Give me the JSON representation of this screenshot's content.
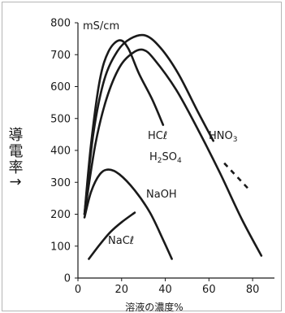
{
  "chart_data": {
    "type": "line",
    "ylabel": "導電率↑",
    "xlabel": "溶液の濃度%",
    "y_unit": "mS/cm",
    "xlim": [
      0,
      90
    ],
    "ylim": [
      0,
      800
    ],
    "x_ticks": [
      0,
      20,
      40,
      60,
      80
    ],
    "y_ticks": [
      0,
      100,
      200,
      300,
      400,
      500,
      600,
      700,
      800
    ],
    "grid": false,
    "legend": "none",
    "series": [
      {
        "name": "HCℓ",
        "label": "HCℓ",
        "color": "#1a1a1a",
        "points": [
          [
            3,
            200
          ],
          [
            6,
            420
          ],
          [
            10,
            620
          ],
          [
            14,
            710
          ],
          [
            19,
            745
          ],
          [
            23,
            720
          ],
          [
            28,
            640
          ],
          [
            34,
            560
          ],
          [
            39,
            480
          ]
        ]
      },
      {
        "name": "H₂SO₄",
        "label_main": "H",
        "label_sub": "2",
        "label_main2": "SO",
        "label_sub2": "4",
        "color": "#1a1a1a",
        "points": [
          [
            3,
            200
          ],
          [
            8,
            420
          ],
          [
            13,
            560
          ],
          [
            19,
            660
          ],
          [
            25,
            705
          ],
          [
            30,
            715
          ],
          [
            35,
            685
          ],
          [
            45,
            590
          ],
          [
            55,
            465
          ],
          [
            65,
            330
          ],
          [
            75,
            185
          ],
          [
            84,
            70
          ]
        ]
      },
      {
        "name": "HNO₃",
        "label_main": "HNO",
        "label_sub": "3",
        "color": "#1a1a1a",
        "points": [
          [
            3,
            200
          ],
          [
            7,
            450
          ],
          [
            12,
            620
          ],
          [
            18,
            710
          ],
          [
            24,
            750
          ],
          [
            31,
            760
          ],
          [
            38,
            720
          ],
          [
            46,
            640
          ],
          [
            55,
            520
          ],
          [
            62,
            430
          ]
        ],
        "dashed_points": [
          [
            67,
            360
          ],
          [
            78,
            280
          ]
        ]
      },
      {
        "name": "NaOH",
        "label": "NaOH",
        "color": "#1a1a1a",
        "points": [
          [
            3,
            190
          ],
          [
            6,
            270
          ],
          [
            10,
            325
          ],
          [
            14,
            340
          ],
          [
            19,
            325
          ],
          [
            26,
            275
          ],
          [
            33,
            205
          ],
          [
            39,
            120
          ],
          [
            43,
            60
          ]
        ]
      },
      {
        "name": "NaCℓ",
        "label": "NaCℓ",
        "color": "#1a1a1a",
        "points": [
          [
            5,
            60
          ],
          [
            10,
            105
          ],
          [
            15,
            145
          ],
          [
            20,
            175
          ],
          [
            26,
            205
          ]
        ]
      }
    ]
  }
}
